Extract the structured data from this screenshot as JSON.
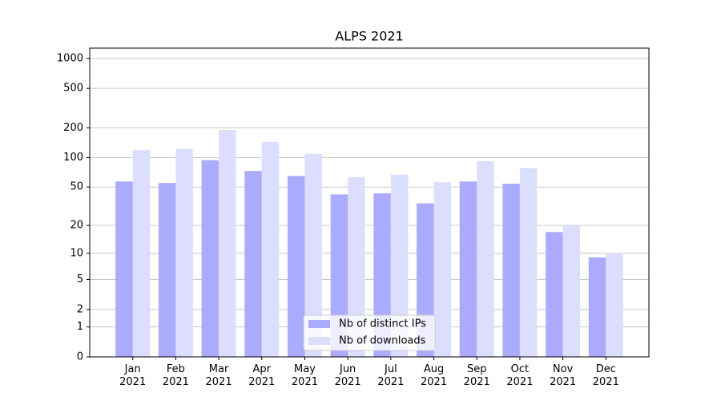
{
  "chart_data": {
    "type": "bar",
    "title": "ALPS 2021",
    "categories": [
      "Jan\n2021",
      "Feb\n2021",
      "Mar\n2021",
      "Apr\n2021",
      "May\n2021",
      "Jun\n2021",
      "Jul\n2021",
      "Aug\n2021",
      "Sep\n2021",
      "Oct\n2021",
      "Nov\n2021",
      "Dec\n2021"
    ],
    "series": [
      {
        "name": "Nb of distinct IPs",
        "color": "#aaaaff",
        "values": [
          57,
          55,
          94,
          73,
          65,
          42,
          43,
          34,
          57,
          54,
          17,
          9
        ]
      },
      {
        "name": "Nb of downloads",
        "color": "#ddddff",
        "values": [
          119,
          122,
          190,
          144,
          109,
          63,
          67,
          56,
          92,
          78,
          20,
          10
        ]
      }
    ],
    "yscale": "log1p",
    "ylim": [
      0,
      1270
    ],
    "yticks": [
      0,
      1,
      2,
      5,
      10,
      20,
      50,
      100,
      200,
      500,
      1000
    ],
    "grid": true,
    "legend": "lower center"
  }
}
